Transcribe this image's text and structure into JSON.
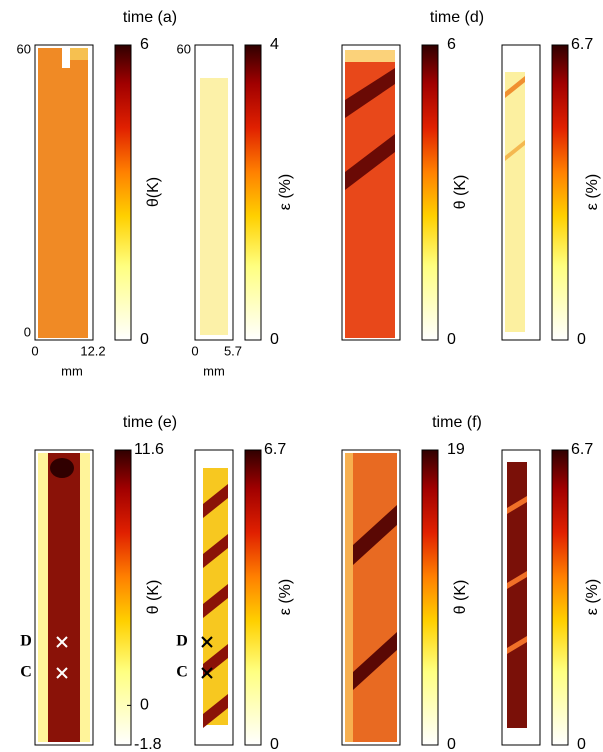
{
  "panels": [
    {
      "title": "time  (a)",
      "thermal": {
        "label": "θ(K)",
        "ticks": [
          0,
          6
        ],
        "axes": {
          "y": [
            0,
            60
          ],
          "x": [
            0,
            12.2
          ],
          "unit": "mm"
        }
      },
      "strain": {
        "label": "ε (%)",
        "ticks": [
          0,
          4
        ],
        "axes": {
          "y": [
            60
          ],
          "x": [
            0,
            5.7
          ],
          "unit": "mm"
        }
      }
    },
    {
      "title": "time  (d)",
      "thermal": {
        "label": "θ (K)",
        "ticks": [
          0,
          6
        ]
      },
      "strain": {
        "label": "ε (%)",
        "ticks": [
          0,
          6.7
        ]
      }
    },
    {
      "title": "time  (e)",
      "thermal": {
        "label": "θ (K)",
        "ticks": [
          -1.8,
          0,
          11.6
        ],
        "markers": [
          "D",
          "C"
        ]
      },
      "strain": {
        "label": "ε (%)",
        "ticks": [
          0,
          6.7
        ],
        "markers": [
          "D",
          "C"
        ]
      }
    },
    {
      "title": "time  (f)",
      "thermal": {
        "label": "θ (K)",
        "ticks": [
          0,
          19
        ]
      },
      "strain": {
        "label": "ε (%)",
        "ticks": [
          0,
          6.7
        ]
      }
    }
  ]
}
